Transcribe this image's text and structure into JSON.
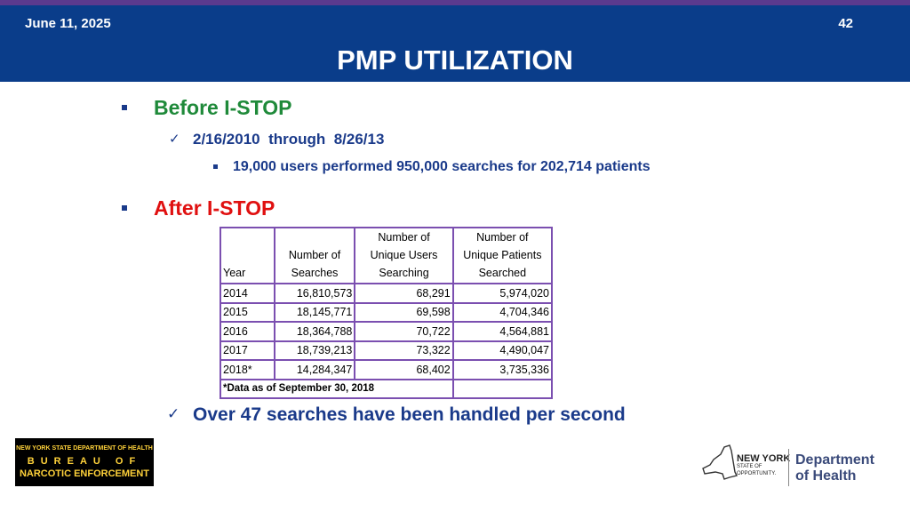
{
  "header": {
    "date": "June 11, 2025",
    "page_number": "42",
    "title": "PMP UTILIZATION"
  },
  "before": {
    "heading": "Before I-STOP",
    "period": "2/16/2010  through  8/26/13",
    "detail": "19,000 users performed 950,000 searches for 202,714 patients"
  },
  "after": {
    "heading": "After I-STOP"
  },
  "table": {
    "columns": [
      {
        "line1": "",
        "line2": "",
        "line3": "Year"
      },
      {
        "line1": "",
        "line2": "Number of",
        "line3": "Searches"
      },
      {
        "line1": "Number of",
        "line2": "Unique Users",
        "line3": "Searching"
      },
      {
        "line1": "Number of",
        "line2": "Unique Patients",
        "line3": "Searched"
      }
    ],
    "rows": [
      {
        "year": "2014",
        "searches": "16,810,573",
        "users": "68,291",
        "patients": "5,974,020"
      },
      {
        "year": "2015",
        "searches": "18,145,771",
        "users": "69,598",
        "patients": "4,704,346"
      },
      {
        "year": "2016",
        "searches": "18,364,788",
        "users": "70,722",
        "patients": "4,564,881"
      },
      {
        "year": "2017",
        "searches": "18,739,213",
        "users": "73,322",
        "patients": "4,490,047"
      },
      {
        "year": "2018*",
        "searches": "14,284,347",
        "users": "68,402",
        "patients": "3,735,336"
      }
    ],
    "footnote": "*Data as of September 30, 2018"
  },
  "closing": "Over 47 searches have been handled per second",
  "logos": {
    "bne_line1": "NEW YORK STATE DEPARTMENT OF HEALTH",
    "bne_line2": "BUREAU OF",
    "bne_line3": "NARCOTIC ENFORCEMENT",
    "nys_line1": "NEW YORK",
    "nys_line2": "STATE OF",
    "nys_line3": "OPPORTUNITY.",
    "doh_line1": "Department",
    "doh_line2": "of Health"
  },
  "colors": {
    "header_bg": "#0a3d8a",
    "accent_purple": "#5b3a8e",
    "before_green": "#1f8a3a",
    "after_red": "#e01010",
    "body_blue": "#1a3a8a",
    "table_border": "#7b4fb0"
  }
}
